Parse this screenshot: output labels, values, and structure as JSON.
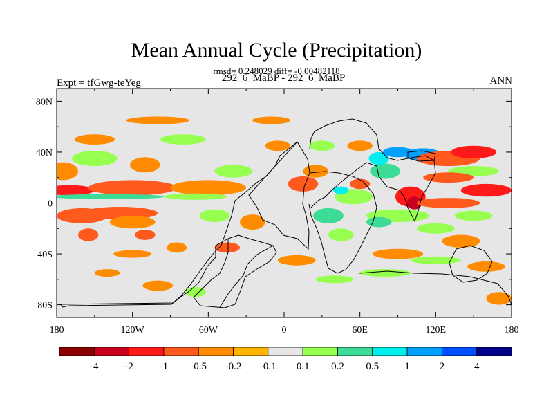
{
  "chart_data": {
    "type": "heatmap",
    "title": "Mean Annual Cycle (Precipitation)",
    "stats_line": "rmsd= 0.248029 diff= -0.00482118",
    "left_header": "Expt = tfGwg-teYeg",
    "center_header": "292_6_MaBP - 292_6_MaBP",
    "right_header": "ANN",
    "x_axis": {
      "range": [
        -180,
        180
      ],
      "ticks": [
        -180,
        -120,
        -60,
        0,
        60,
        120,
        180
      ],
      "tick_labels": [
        "180",
        "120W",
        "60W",
        "0",
        "60E",
        "120E",
        "180"
      ]
    },
    "y_axis": {
      "range": [
        -90,
        90
      ],
      "ticks": [
        80,
        40,
        0,
        -40,
        -80
      ],
      "tick_labels": [
        "80N",
        "40N",
        "0",
        "40S",
        "80S"
      ]
    },
    "colorbar": {
      "labels": [
        "-4",
        "-2",
        "-1",
        "-0.5",
        "-0.2",
        "-0.1",
        "0.1",
        "0.2",
        "0.5",
        "1",
        "2",
        "4"
      ],
      "colors": [
        "#8b0000",
        "#c8001e",
        "#ff1a1a",
        "#ff5a1e",
        "#ff8c00",
        "#ffb400",
        "#e6e6e6",
        "#96ff50",
        "#3cdc96",
        "#00eeee",
        "#00a0ff",
        "#0050ff",
        "#00008b"
      ]
    },
    "background_color": "#e6e6e6",
    "blobs": [
      {
        "lon": -175,
        "lat": 25,
        "rlon": 12,
        "rlat": 7,
        "level": -0.2
      },
      {
        "lon": -170,
        "lat": 10,
        "rlon": 20,
        "rlat": 4,
        "level": -1
      },
      {
        "lon": -120,
        "lat": 12,
        "rlon": 35,
        "rlat": 6,
        "level": -0.5
      },
      {
        "lon": -60,
        "lat": 12,
        "rlon": 30,
        "rlat": 6,
        "level": -0.2
      },
      {
        "lon": -140,
        "lat": 5,
        "rlon": 45,
        "rlat": 2,
        "level": 0.5
      },
      {
        "lon": -70,
        "lat": 5,
        "rlon": 25,
        "rlat": 2.5,
        "level": 0.2
      },
      {
        "lon": -150,
        "lat": 35,
        "rlon": 18,
        "rlat": 6,
        "level": 0.2
      },
      {
        "lon": -150,
        "lat": 50,
        "rlon": 16,
        "rlat": 4,
        "level": -0.2
      },
      {
        "lon": -110,
        "lat": 30,
        "rlon": 12,
        "rlat": 6,
        "level": -0.2
      },
      {
        "lon": -160,
        "lat": -10,
        "rlon": 20,
        "rlat": 6,
        "level": -0.5
      },
      {
        "lon": -130,
        "lat": -8,
        "rlon": 30,
        "rlat": 5,
        "level": -0.5
      },
      {
        "lon": -120,
        "lat": -15,
        "rlon": 18,
        "rlat": 5,
        "level": -0.2
      },
      {
        "lon": -155,
        "lat": -25,
        "rlon": 8,
        "rlat": 5,
        "level": -0.5
      },
      {
        "lon": -110,
        "lat": -25,
        "rlon": 8,
        "rlat": 4,
        "level": -0.5
      },
      {
        "lon": -85,
        "lat": -35,
        "rlon": 8,
        "rlat": 4,
        "level": -0.2
      },
      {
        "lon": -120,
        "lat": -40,
        "rlon": 15,
        "rlat": 3,
        "level": -0.2
      },
      {
        "lon": -140,
        "lat": -55,
        "rlon": 10,
        "rlat": 3,
        "level": -0.2
      },
      {
        "lon": -100,
        "lat": -65,
        "rlon": 12,
        "rlat": 4,
        "level": -0.2
      },
      {
        "lon": -70,
        "lat": -70,
        "rlon": 8,
        "rlat": 4,
        "level": 0.2
      },
      {
        "lon": -45,
        "lat": -35,
        "rlon": 10,
        "rlat": 4,
        "level": -0.5
      },
      {
        "lon": -55,
        "lat": -10,
        "rlon": 12,
        "rlat": 5,
        "level": 0.2
      },
      {
        "lon": -25,
        "lat": -15,
        "rlon": 10,
        "rlat": 6,
        "level": -0.2
      },
      {
        "lon": -40,
        "lat": 25,
        "rlon": 15,
        "rlat": 5,
        "level": 0.2
      },
      {
        "lon": -80,
        "lat": 50,
        "rlon": 18,
        "rlat": 4,
        "level": 0.2
      },
      {
        "lon": -100,
        "lat": 65,
        "rlon": 25,
        "rlat": 3,
        "level": -0.2
      },
      {
        "lon": -10,
        "lat": 65,
        "rlon": 15,
        "rlat": 3,
        "level": -0.2
      },
      {
        "lon": -5,
        "lat": 45,
        "rlon": 10,
        "rlat": 4,
        "level": -0.2
      },
      {
        "lon": 15,
        "lat": 15,
        "rlon": 12,
        "rlat": 6,
        "level": -0.5
      },
      {
        "lon": 25,
        "lat": 25,
        "rlon": 10,
        "rlat": 5,
        "level": -0.2
      },
      {
        "lon": 35,
        "lat": -10,
        "rlon": 12,
        "rlat": 6,
        "level": 0.5
      },
      {
        "lon": 45,
        "lat": -25,
        "rlon": 10,
        "rlat": 5,
        "level": 0.2
      },
      {
        "lon": 55,
        "lat": 5,
        "rlon": 15,
        "rlat": 6,
        "level": 0.2
      },
      {
        "lon": 45,
        "lat": 10,
        "rlon": 6,
        "rlat": 3,
        "level": 1
      },
      {
        "lon": 60,
        "lat": 15,
        "rlon": 8,
        "rlat": 4,
        "level": -0.5
      },
      {
        "lon": 80,
        "lat": 25,
        "rlon": 12,
        "rlat": 6,
        "level": 0.5
      },
      {
        "lon": 75,
        "lat": 35,
        "rlon": 8,
        "rlat": 5,
        "level": 1
      },
      {
        "lon": 90,
        "lat": 40,
        "rlon": 12,
        "rlat": 4,
        "level": 2
      },
      {
        "lon": 110,
        "lat": 38,
        "rlon": 15,
        "rlat": 5,
        "level": 2
      },
      {
        "lon": 130,
        "lat": 35,
        "rlon": 25,
        "rlat": 6,
        "level": -0.5
      },
      {
        "lon": 150,
        "lat": 40,
        "rlon": 18,
        "rlat": 5,
        "level": -1
      },
      {
        "lon": 150,
        "lat": 25,
        "rlon": 20,
        "rlat": 4,
        "level": 0.2
      },
      {
        "lon": 130,
        "lat": 20,
        "rlon": 20,
        "rlat": 4,
        "level": -0.5
      },
      {
        "lon": 100,
        "lat": 5,
        "rlon": 12,
        "rlat": 8,
        "level": -1
      },
      {
        "lon": 103,
        "lat": 0,
        "rlon": 6,
        "rlat": 5,
        "level": -2
      },
      {
        "lon": 130,
        "lat": 0,
        "rlon": 25,
        "rlat": 4,
        "level": -0.5
      },
      {
        "lon": 160,
        "lat": 10,
        "rlon": 20,
        "rlat": 5,
        "level": -1
      },
      {
        "lon": 90,
        "lat": -10,
        "rlon": 25,
        "rlat": 5,
        "level": 0.2
      },
      {
        "lon": 75,
        "lat": -15,
        "rlon": 10,
        "rlat": 4,
        "level": 0.5
      },
      {
        "lon": 120,
        "lat": -20,
        "rlon": 15,
        "rlat": 4,
        "level": 0.2
      },
      {
        "lon": 150,
        "lat": -10,
        "rlon": 15,
        "rlat": 4,
        "level": 0.2
      },
      {
        "lon": 140,
        "lat": -30,
        "rlon": 15,
        "rlat": 5,
        "level": -0.2
      },
      {
        "lon": 90,
        "lat": -40,
        "rlon": 20,
        "rlat": 4,
        "level": -0.2
      },
      {
        "lon": 120,
        "lat": -45,
        "rlon": 20,
        "rlat": 3,
        "level": 0.2
      },
      {
        "lon": 80,
        "lat": -55,
        "rlon": 20,
        "rlat": 3,
        "level": 0.2
      },
      {
        "lon": 160,
        "lat": -50,
        "rlon": 15,
        "rlat": 4,
        "level": -0.2
      },
      {
        "lon": 170,
        "lat": -75,
        "rlon": 10,
        "rlat": 5,
        "level": -0.2
      },
      {
        "lon": 30,
        "lat": 45,
        "rlon": 10,
        "rlat": 4,
        "level": 0.2
      },
      {
        "lon": 60,
        "lat": 45,
        "rlon": 10,
        "rlat": 4,
        "level": -0.2
      },
      {
        "lon": 10,
        "lat": -45,
        "rlon": 15,
        "rlat": 4,
        "level": -0.2
      },
      {
        "lon": 40,
        "lat": -60,
        "rlon": 15,
        "rlat": 3,
        "level": 0.2
      }
    ]
  }
}
